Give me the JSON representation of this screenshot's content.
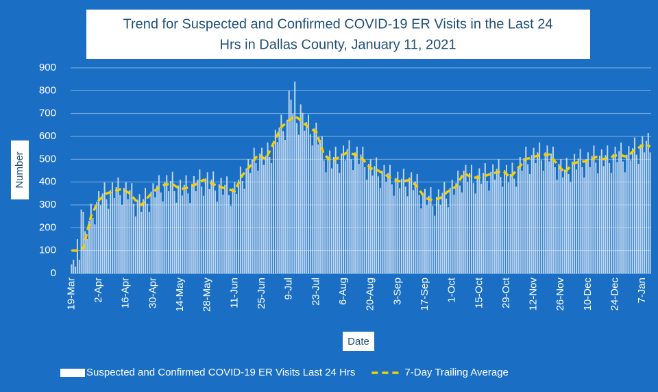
{
  "chart_data": {
    "type": "bar",
    "title": [
      "Trend for Suspected and Confirmed COVID-19 ER Visits in the Last 24",
      "Hrs in Dallas County, January 11, 2021"
    ],
    "x_label": "Date",
    "y_label": "Number",
    "ylim": [
      0,
      900
    ],
    "yticks": [
      0,
      100,
      200,
      300,
      400,
      500,
      600,
      700,
      800,
      900
    ],
    "grid": true,
    "legend": "bottom",
    "categories": [
      "19-Mar",
      null,
      null,
      null,
      null,
      null,
      null,
      null,
      null,
      null,
      null,
      null,
      null,
      null,
      "2-Apr",
      null,
      null,
      null,
      null,
      null,
      null,
      null,
      null,
      null,
      null,
      null,
      null,
      null,
      "16-Apr",
      null,
      null,
      null,
      null,
      null,
      null,
      null,
      null,
      null,
      null,
      null,
      null,
      null,
      "30-Apr",
      null,
      null,
      null,
      null,
      null,
      null,
      null,
      null,
      null,
      null,
      null,
      null,
      null,
      "14-May",
      null,
      null,
      null,
      null,
      null,
      null,
      null,
      null,
      null,
      null,
      null,
      null,
      null,
      "28-May",
      null,
      null,
      null,
      null,
      null,
      null,
      null,
      null,
      null,
      null,
      null,
      null,
      null,
      "11-Jun",
      null,
      null,
      null,
      null,
      null,
      null,
      null,
      null,
      null,
      null,
      null,
      null,
      null,
      "25-Jun",
      null,
      null,
      null,
      null,
      null,
      null,
      null,
      null,
      null,
      null,
      null,
      null,
      null,
      "9-Jul",
      null,
      null,
      null,
      null,
      null,
      null,
      null,
      null,
      null,
      null,
      null,
      null,
      null,
      "23-Jul",
      null,
      null,
      null,
      null,
      null,
      null,
      null,
      null,
      null,
      null,
      null,
      null,
      null,
      "6-Aug",
      null,
      null,
      null,
      null,
      null,
      null,
      null,
      null,
      null,
      null,
      null,
      null,
      null,
      "20-Aug",
      null,
      null,
      null,
      null,
      null,
      null,
      null,
      null,
      null,
      null,
      null,
      null,
      null,
      "3-Sep",
      null,
      null,
      null,
      null,
      null,
      null,
      null,
      null,
      null,
      null,
      null,
      null,
      null,
      "17-Sep",
      null,
      null,
      null,
      null,
      null,
      null,
      null,
      null,
      null,
      null,
      null,
      null,
      null,
      "1-Oct",
      null,
      null,
      null,
      null,
      null,
      null,
      null,
      null,
      null,
      null,
      null,
      null,
      null,
      "15-Oct",
      null,
      null,
      null,
      null,
      null,
      null,
      null,
      null,
      null,
      null,
      null,
      null,
      null,
      "29-Oct",
      null,
      null,
      null,
      null,
      null,
      null,
      null,
      null,
      null,
      null,
      null,
      null,
      null,
      "12-Nov",
      null,
      null,
      null,
      null,
      null,
      null,
      null,
      null,
      null,
      null,
      null,
      null,
      null,
      "26-Nov",
      null,
      null,
      null,
      null,
      null,
      null,
      null,
      null,
      null,
      null,
      null,
      null,
      null,
      "10-Dec",
      null,
      null,
      null,
      null,
      null,
      null,
      null,
      null,
      null,
      null,
      null,
      null,
      null,
      "24-Dec",
      null,
      null,
      null,
      null,
      null,
      null,
      null,
      null,
      null,
      null,
      null,
      null,
      null,
      "7-Jan",
      null,
      null,
      null,
      null
    ],
    "series": [
      {
        "name": "Suspected and Confirmed COVID-19 ER Visits Last 24 Hrs",
        "type": "bar",
        "color": "#dce9f7",
        "values": [
          40,
          60,
          30,
          150,
          60,
          280,
          270,
          185,
          150,
          230,
          305,
          243,
          215,
          313,
          360,
          298,
          350,
          398,
          325,
          283,
          365,
          398,
          330,
          378,
          420,
          343,
          300,
          375,
          400,
          325,
          365,
          395,
          305,
          250,
          323,
          347,
          270,
          325,
          375,
          305,
          270,
          358,
          395,
          333,
          385,
          430,
          355,
          315,
          400,
          430,
          360,
          405,
          445,
          360,
          310,
          385,
          410,
          341,
          388,
          429,
          350,
          309,
          393,
          426,
          360,
          410,
          455,
          380,
          340,
          416,
          443,
          369,
          410,
          446,
          363,
          314,
          390,
          418,
          345,
          388,
          425,
          343,
          295,
          373,
          400,
          348,
          410,
          468,
          405,
          370,
          460,
          500,
          440,
          498,
          550,
          483,
          450,
          525,
          550,
          475,
          515,
          573,
          510,
          483,
          580,
          628,
          575,
          638,
          695,
          623,
          585,
          673,
          800,
          760,
          698,
          840,
          658,
          607,
          740,
          703,
          625,
          663,
          695,
          610,
          560,
          635,
          660,
          565,
          585,
          600,
          495,
          443,
          515,
          538,
          460,
          510,
          555,
          480,
          440,
          525,
          560,
          495,
          545,
          583,
          500,
          453,
          530,
          555,
          480,
          520,
          555,
          465,
          410,
          480,
          500,
          428,
          470,
          508,
          425,
          375,
          450,
          475,
          400,
          440,
          475,
          390,
          340,
          418,
          445,
          373,
          415,
          458,
          380,
          338,
          420,
          443,
          365,
          403,
          435,
          343,
          285,
          353,
          370,
          298,
          340,
          378,
          295,
          253,
          335,
          368,
          300,
          353,
          400,
          328,
          290,
          375,
          410,
          345,
          395,
          450,
          385,
          355,
          450,
          475,
          400,
          440,
          475,
          395,
          350,
          430,
          460,
          393,
          440,
          483,
          405,
          363,
          445,
          478,
          410,
          458,
          500,
          423,
          380,
          453,
          475,
          398,
          435,
          485,
          415,
          380,
          470,
          510,
          450,
          505,
          555,
          478,
          435,
          518,
          550,
          483,
          530,
          573,
          495,
          450,
          530,
          560,
          490,
          525,
          555,
          465,
          410,
          480,
          500,
          420,
          455,
          505,
          435,
          400,
          490,
          523,
          455,
          503,
          545,
          465,
          420,
          500,
          530,
          465,
          515,
          560,
          485,
          438,
          515,
          543,
          470,
          518,
          560,
          483,
          440,
          523,
          555,
          488,
          535,
          573,
          490,
          443,
          520,
          558,
          495,
          548,
          595,
          520,
          480,
          565,
          600,
          530,
          580,
          615,
          530
        ]
      },
      {
        "name": "7-Day Trailing Average",
        "type": "line",
        "color": "#f5d000",
        "values": [
          100,
          100,
          100,
          100,
          103,
          107,
          110,
          145,
          180,
          215,
          250,
          268,
          285,
          303,
          320,
          328,
          335,
          343,
          350,
          353,
          355,
          358,
          360,
          363,
          365,
          368,
          370,
          365,
          360,
          355,
          350,
          340,
          330,
          320,
          313,
          307,
          300,
          310,
          320,
          330,
          340,
          348,
          355,
          363,
          370,
          375,
          380,
          385,
          390,
          390,
          390,
          390,
          390,
          385,
          380,
          375,
          370,
          371,
          373,
          374,
          375,
          379,
          383,
          386,
          390,
          395,
          400,
          405,
          410,
          406,
          403,
          399,
          395,
          391,
          388,
          384,
          380,
          378,
          375,
          373,
          370,
          368,
          365,
          363,
          360,
          378,
          395,
          413,
          430,
          440,
          450,
          460,
          470,
          483,
          495,
          508,
          520,
          515,
          510,
          505,
          500,
          518,
          535,
          553,
          570,
          588,
          605,
          623,
          640,
          648,
          655,
          663,
          670,
          677,
          683,
          690,
          683,
          677,
          670,
          663,
          655,
          648,
          640,
          635,
          630,
          625,
          620,
          595,
          570,
          545,
          520,
          513,
          505,
          498,
          490,
          495,
          500,
          505,
          510,
          515,
          520,
          525,
          530,
          528,
          525,
          523,
          520,
          515,
          510,
          505,
          500,
          490,
          480,
          470,
          460,
          458,
          455,
          453,
          450,
          445,
          440,
          435,
          430,
          425,
          420,
          415,
          410,
          408,
          405,
          403,
          400,
          403,
          405,
          408,
          410,
          403,
          395,
          388,
          380,
          368,
          355,
          343,
          330,
          328,
          325,
          323,
          320,
          323,
          325,
          328,
          330,
          338,
          345,
          353,
          360,
          365,
          370,
          375,
          380,
          395,
          410,
          425,
          440,
          435,
          430,
          425,
          420,
          420,
          420,
          420,
          420,
          423,
          425,
          428,
          430,
          433,
          435,
          438,
          440,
          443,
          445,
          448,
          450,
          443,
          435,
          428,
          420,
          430,
          440,
          450,
          460,
          470,
          480,
          490,
          500,
          503,
          505,
          508,
          510,
          513,
          515,
          518,
          520,
          520,
          520,
          520,
          520,
          510,
          500,
          490,
          480,
          470,
          460,
          450,
          440,
          450,
          460,
          470,
          480,
          483,
          485,
          488,
          490,
          490,
          490,
          490,
          490,
          495,
          500,
          505,
          510,
          508,
          505,
          503,
          500,
          503,
          505,
          508,
          510,
          513,
          515,
          518,
          520,
          518,
          515,
          513,
          510,
          518,
          525,
          533,
          540,
          545,
          550,
          555,
          560,
          560,
          565,
          560,
          555
        ]
      }
    ]
  }
}
